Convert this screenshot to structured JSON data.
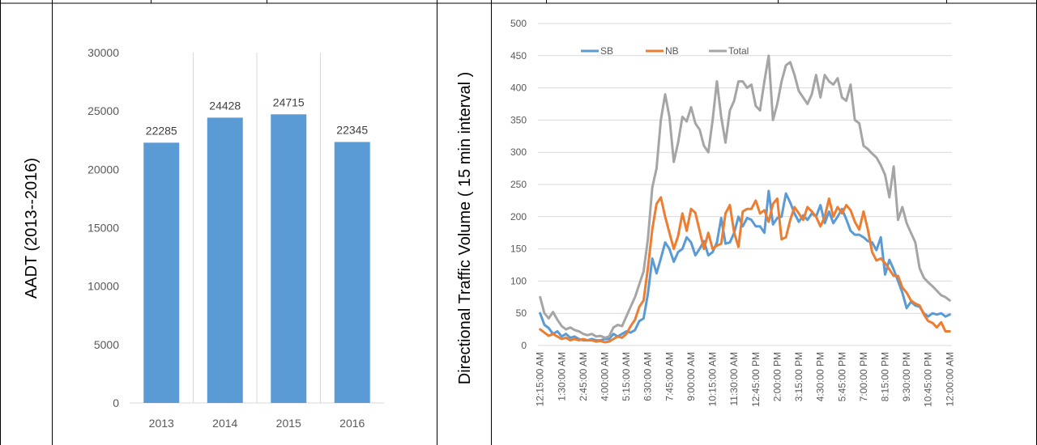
{
  "chart_data": [
    {
      "type": "bar",
      "ylabel": "AADT (2013--2016)",
      "categories": [
        "2013",
        "2014",
        "2015",
        "2016"
      ],
      "values": [
        22285,
        24428,
        24715,
        22345
      ],
      "data_labels": [
        "22285",
        "24428",
        "24715",
        "22345"
      ],
      "ylim": [
        0,
        30000
      ],
      "yticks": [
        0,
        5000,
        10000,
        15000,
        20000,
        25000,
        30000
      ],
      "ytick_labels": [
        "0",
        "5000",
        "10000",
        "15000",
        "20000",
        "25000",
        "30000"
      ],
      "grid": "vertical category separators",
      "color": "#5B9BD5"
    },
    {
      "type": "line",
      "ylabel": "Directional Traffic Volume ( 15 min interval )",
      "ylim": [
        0,
        500
      ],
      "yticks": [
        0,
        50,
        100,
        150,
        200,
        250,
        300,
        350,
        400,
        450,
        500
      ],
      "ytick_labels": [
        "0",
        "50",
        "100",
        "150",
        "200",
        "250",
        "300",
        "350",
        "400",
        "450",
        "500"
      ],
      "x": [
        "12:15:00 AM",
        "12:30:00 AM",
        "12:45:00 AM",
        "1:00:00 AM",
        "1:15:00 AM",
        "1:30:00 AM",
        "1:45:00 AM",
        "2:00:00 AM",
        "2:15:00 AM",
        "2:30:00 AM",
        "2:45:00 AM",
        "3:00:00 AM",
        "3:15:00 AM",
        "3:30:00 AM",
        "3:45:00 AM",
        "4:00:00 AM",
        "4:15:00 AM",
        "4:30:00 AM",
        "4:45:00 AM",
        "5:00:00 AM",
        "5:15:00 AM",
        "5:30:00 AM",
        "5:45:00 AM",
        "6:00:00 AM",
        "6:15:00 AM",
        "6:30:00 AM",
        "6:45:00 AM",
        "7:00:00 AM",
        "7:15:00 AM",
        "7:30:00 AM",
        "7:45:00 AM",
        "8:00:00 AM",
        "8:15:00 AM",
        "8:30:00 AM",
        "8:45:00 AM",
        "9:00:00 AM",
        "9:15:00 AM",
        "9:30:00 AM",
        "9:45:00 AM",
        "10:00:00 AM",
        "10:15:00 AM",
        "10:30:00 AM",
        "10:45:00 AM",
        "11:00:00 AM",
        "11:15:00 AM",
        "11:30:00 AM",
        "11:45:00 AM",
        "12:00:00 PM",
        "12:15:00 PM",
        "12:30:00 PM",
        "12:45:00 PM",
        "1:00:00 PM",
        "1:15:00 PM",
        "1:30:00 PM",
        "1:45:00 PM",
        "2:00:00 PM",
        "2:15:00 PM",
        "2:30:00 PM",
        "2:45:00 PM",
        "3:00:00 PM",
        "3:15:00 PM",
        "3:30:00 PM",
        "3:45:00 PM",
        "4:00:00 PM",
        "4:15:00 PM",
        "4:30:00 PM",
        "4:45:00 PM",
        "5:00:00 PM",
        "5:15:00 PM",
        "5:30:00 PM",
        "5:45:00 PM",
        "6:00:00 PM",
        "6:15:00 PM",
        "6:30:00 PM",
        "6:45:00 PM",
        "7:00:00 PM",
        "7:15:00 PM",
        "7:30:00 PM",
        "7:45:00 PM",
        "8:00:00 PM",
        "8:15:00 PM",
        "8:30:00 PM",
        "8:45:00 PM",
        "9:00:00 PM",
        "9:15:00 PM",
        "9:30:00 PM",
        "9:45:00 PM",
        "10:00:00 PM",
        "10:15:00 PM",
        "10:30:00 PM",
        "10:45:00 PM",
        "11:00:00 PM",
        "11:15:00 PM",
        "11:30:00 PM",
        "11:45:00 PM",
        "12:00:00 AM"
      ],
      "tick_labels": [
        "12:15:00 AM",
        "1:30:00 AM",
        "2:45:00 AM",
        "4:00:00 AM",
        "5:15:00 AM",
        "6:30:00 AM",
        "7:45:00 AM",
        "9:00:00 AM",
        "10:15:00 AM",
        "11:30:00 AM",
        "12:45:00 PM",
        "2:00:00 PM",
        "3:15:00 PM",
        "4:30:00 PM",
        "5:45:00 PM",
        "7:00:00 PM",
        "8:15:00 PM",
        "9:30:00 PM",
        "10:45:00 PM",
        "12:00:00 AM"
      ],
      "legend_position": "top-left",
      "grid": "horizontal",
      "series": [
        {
          "name": "SB",
          "color": "#5B9BD5",
          "values": [
            50,
            32,
            27,
            18,
            22,
            14,
            18,
            12,
            14,
            10,
            8,
            8,
            10,
            8,
            8,
            10,
            10,
            18,
            14,
            18,
            22,
            20,
            24,
            38,
            42,
            80,
            135,
            112,
            135,
            160,
            150,
            130,
            145,
            150,
            168,
            160,
            140,
            150,
            162,
            140,
            145,
            160,
            198,
            158,
            160,
            175,
            200,
            185,
            198,
            195,
            185,
            185,
            175,
            240,
            188,
            198,
            200,
            236,
            222,
            205,
            192,
            202,
            195,
            205,
            200,
            218,
            190,
            208,
            190,
            200,
            212,
            196,
            178,
            172,
            172,
            168,
            162,
            160,
            148,
            168,
            110,
            133,
            118,
            100,
            82,
            58,
            68,
            62,
            60,
            50,
            45,
            50,
            48,
            50,
            45,
            48
          ]
        },
        {
          "name": "NB",
          "color": "#ED7D31",
          "values": [
            25,
            20,
            15,
            18,
            14,
            10,
            12,
            8,
            10,
            8,
            10,
            8,
            8,
            6,
            7,
            5,
            6,
            10,
            14,
            12,
            18,
            30,
            40,
            60,
            70,
            120,
            180,
            220,
            230,
            200,
            175,
            150,
            170,
            205,
            178,
            212,
            206,
            178,
            150,
            175,
            150,
            155,
            158,
            205,
            218,
            175,
            153,
            208,
            212,
            212,
            225,
            205,
            210,
            192,
            220,
            228,
            165,
            168,
            195,
            215,
            205,
            195,
            215,
            208,
            200,
            185,
            200,
            228,
            200,
            215,
            205,
            218,
            210,
            192,
            180,
            208,
            180,
            145,
            132,
            135,
            128,
            118,
            108,
            108,
            90,
            82,
            70,
            65,
            62,
            48,
            38,
            35,
            28,
            36,
            22,
            22
          ]
        },
        {
          "name": "Total",
          "color": "#A5A5A5",
          "values": [
            75,
            50,
            42,
            52,
            40,
            30,
            25,
            28,
            24,
            22,
            18,
            16,
            18,
            14,
            15,
            12,
            14,
            28,
            32,
            30,
            45,
            60,
            75,
            95,
            115,
            165,
            245,
            275,
            350,
            390,
            355,
            285,
            315,
            355,
            348,
            370,
            345,
            335,
            310,
            300,
            350,
            410,
            355,
            315,
            365,
            380,
            410,
            410,
            400,
            405,
            372,
            365,
            410,
            450,
            350,
            375,
            410,
            435,
            440,
            420,
            395,
            385,
            375,
            390,
            420,
            385,
            420,
            410,
            405,
            415,
            385,
            380,
            405,
            350,
            345,
            310,
            305,
            298,
            292,
            280,
            265,
            230,
            278,
            195,
            215,
            190,
            175,
            160,
            120,
            105,
            98,
            92,
            85,
            78,
            75,
            70
          ]
        }
      ]
    }
  ]
}
